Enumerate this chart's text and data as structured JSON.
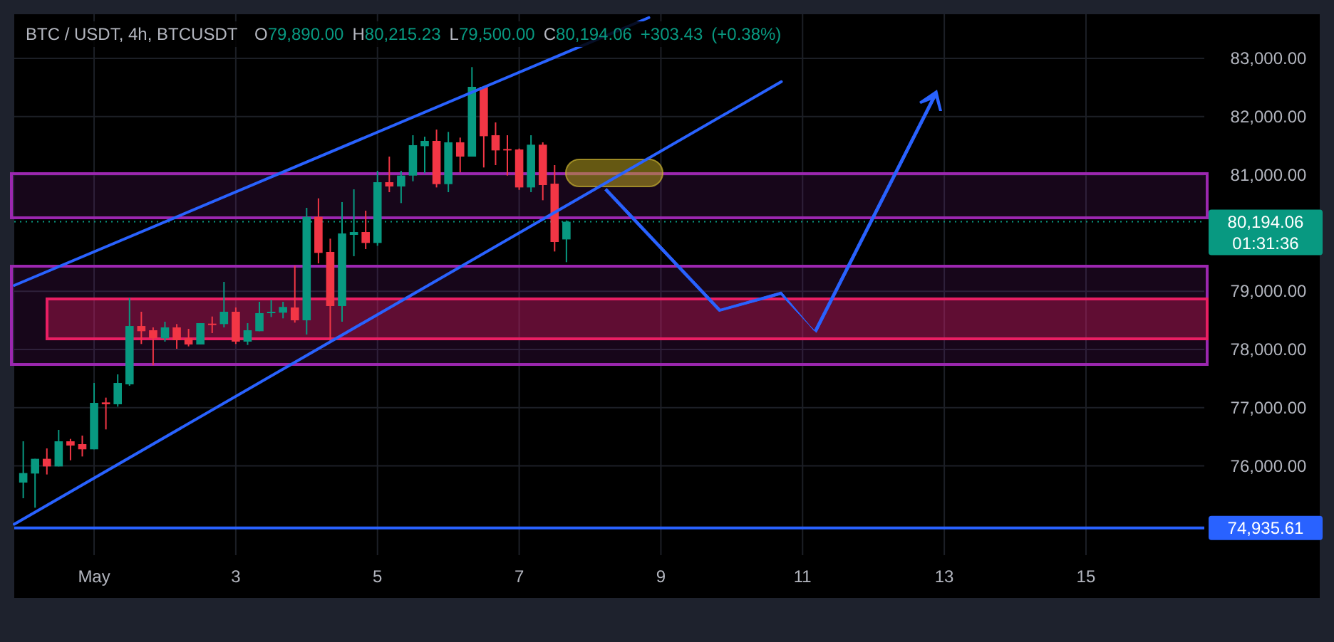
{
  "chart_data": {
    "type": "candlestick",
    "title": "BTC / USDT, 4h, BTCUSDT",
    "subtitle": "O79,890.00 H80,215.23 L79,500.00 C80,194.06 +303.43 (+0.38%)",
    "xlim": [
      -0.127,
      16.67
    ],
    "xticks": [
      {
        "value": 1,
        "label": "May"
      },
      3,
      5,
      7,
      9,
      11,
      13,
      15
    ],
    "ylim": [
      74467,
      83758
    ],
    "yticks": [
      {
        "value": 76000,
        "label": "76,000.00"
      },
      {
        "value": 77000,
        "label": "77,000.00"
      },
      {
        "value": 78000,
        "label": "78,000.00"
      },
      {
        "value": 79000,
        "label": "79,000.00"
      },
      {
        "value": 81000,
        "label": "81,000.00"
      },
      {
        "value": 82000,
        "label": "82,000.00"
      },
      {
        "value": 83000,
        "label": "83,000.00"
      }
    ],
    "grid": true,
    "series": [
      {
        "x": [
          0,
          0.1667,
          0.3333,
          0.5,
          0.6667,
          0.8333,
          1,
          1.1667,
          1.3333,
          1.5,
          1.6667,
          1.8333,
          2,
          2.1667,
          2.3333,
          2.5,
          2.6667,
          2.8333,
          3,
          3.1667,
          3.3333,
          3.5,
          3.6667,
          3.8333,
          4,
          4.1667,
          4.3333,
          4.5,
          4.6667,
          4.8333,
          5,
          5.1667,
          5.3333,
          5.5,
          5.6667,
          5.8333,
          6,
          6.1667,
          6.3333,
          6.5,
          6.6667,
          6.8333,
          7,
          7.1667,
          7.3333,
          7.5,
          7.6667
        ],
        "ohlc": [
          [
            75714,
            76423,
            75445,
            75877
          ],
          [
            75869,
            76122,
            75282,
            76122
          ],
          [
            76122,
            76301,
            75853,
            75991
          ],
          [
            75991,
            76619,
            75991,
            76423
          ],
          [
            76423,
            76464,
            76097,
            76350
          ],
          [
            76374,
            76521,
            76162,
            76285
          ],
          [
            76285,
            77425,
            76285,
            77083
          ],
          [
            77091,
            77173,
            76627,
            77059
          ],
          [
            77059,
            77572,
            77018,
            77425
          ],
          [
            77401,
            78884,
            77377,
            78403
          ],
          [
            78403,
            78648,
            78094,
            78314
          ],
          [
            78330,
            78379,
            77727,
            78192
          ],
          [
            78192,
            78477,
            78135,
            78379
          ],
          [
            78379,
            78436,
            78012,
            78159
          ],
          [
            78192,
            78354,
            78053,
            78086
          ],
          [
            78086,
            78452,
            78086,
            78452
          ],
          [
            78444,
            78566,
            78281,
            78436
          ],
          [
            78436,
            79161,
            78379,
            78648
          ],
          [
            78648,
            78721,
            78094,
            78135
          ],
          [
            78135,
            78452,
            78078,
            78330
          ],
          [
            78314,
            78819,
            78314,
            78624
          ],
          [
            78632,
            78852,
            78558,
            78648
          ],
          [
            78632,
            78819,
            78534,
            78730
          ],
          [
            78721,
            79439,
            78461,
            78501
          ],
          [
            78501,
            80433,
            78257,
            80278
          ],
          [
            80278,
            80596,
            79479,
            79659
          ],
          [
            79675,
            79903,
            78151,
            78746
          ],
          [
            78746,
            80531,
            78477,
            79993
          ],
          [
            79968,
            80751,
            79602,
            80017
          ],
          [
            80017,
            80384,
            79724,
            79830
          ],
          [
            79830,
            81069,
            79781,
            80873
          ],
          [
            80873,
            81313,
            80702,
            80800
          ],
          [
            80800,
            81069,
            80514,
            80987
          ],
          [
            80987,
            81680,
            80889,
            81509
          ],
          [
            81492,
            81655,
            81028,
            81582
          ],
          [
            81582,
            81777,
            80783,
            80840
          ],
          [
            80840,
            81737,
            80702,
            81558
          ],
          [
            81558,
            81639,
            81044,
            81313
          ],
          [
            81313,
            82850,
            81313,
            82511
          ],
          [
            82511,
            82511,
            81126,
            81663
          ],
          [
            81680,
            81900,
            81166,
            81419
          ],
          [
            81443,
            81680,
            80987,
            81419
          ],
          [
            81435,
            81451,
            80742,
            80783
          ],
          [
            80783,
            81680,
            80702,
            81517
          ],
          [
            81517,
            81558,
            80563,
            80824
          ],
          [
            80848,
            81166,
            79683,
            79846
          ],
          [
            79890,
            80215.23,
            79500,
            80194.06
          ]
        ],
        "colors": [
          "#089981",
          "#089981",
          "#f23645",
          "#089981",
          "#f23645",
          "#f23645",
          "#089981",
          "#f23645",
          "#089981",
          "#089981",
          "#f23645",
          "#f23645",
          "#089981",
          "#f23645",
          "#f23645",
          "#089981",
          "#f23645",
          "#089981",
          "#f23645",
          "#089981",
          "#089981",
          "#089981",
          "#089981",
          "#f23645",
          "#089981",
          "#f23645",
          "#f23645",
          "#089981",
          "#089981",
          "#f23645",
          "#089981",
          "#f23645",
          "#089981",
          "#089981",
          "#089981",
          "#f23645",
          "#089981",
          "#f23645",
          "#089981",
          "#f23645",
          "#f23645",
          "#f23645",
          "#f23645",
          "#089981",
          "#f23645",
          "#f23645",
          "#089981"
        ]
      },
      {
        "type": "line",
        "color": "#2962ff",
        "x": [
          -0.127,
          8.83
        ],
        "values": [
          79100,
          83700
        ]
      },
      {
        "type": "line",
        "color": "#2962ff",
        "x": [
          -0.127,
          10.7
        ],
        "values": [
          75000,
          82600
        ]
      }
    ],
    "bands": [
      {
        "axis": "y",
        "from": 80262,
        "to": 81020,
        "color": "#9c27b0"
      },
      {
        "axis": "y",
        "from": 77743,
        "to": 79430,
        "color": "#9c27b0"
      },
      {
        "axis": "y",
        "from": 78183,
        "to": 78868,
        "color": "#e91e63"
      }
    ],
    "ref_lines": [
      {
        "axis": "y",
        "value": 80194.06,
        "label": "80,194.06",
        "color": "#089981",
        "line_style": "dotted"
      },
      {
        "axis": "y",
        "value": 74935.61,
        "label": "74,935.61",
        "color": "#2962ff",
        "line_style": "solid"
      }
    ],
    "annotations": [
      "01:31:36"
    ]
  }
}
